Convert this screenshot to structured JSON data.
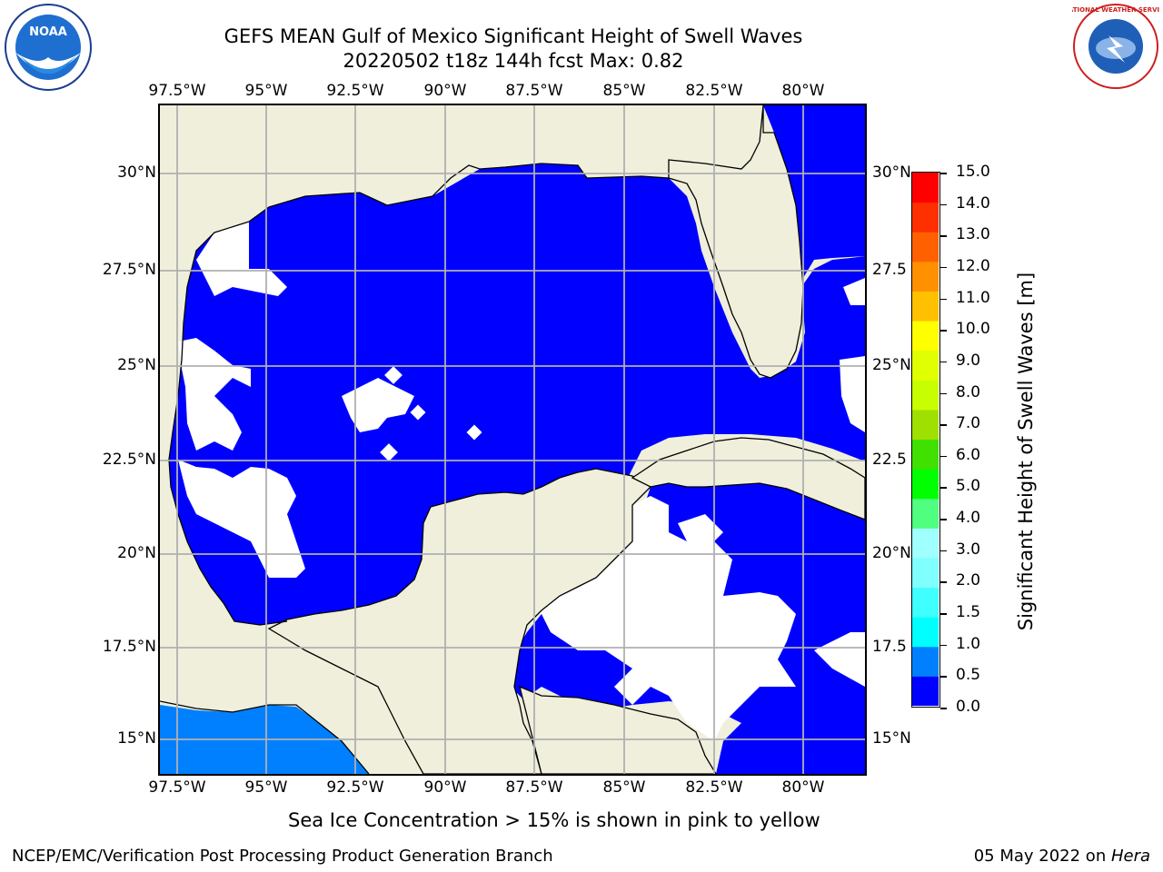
{
  "title_line1": "GEFS MEAN Gulf of Mexico Significant Height of Swell Waves",
  "title_line2": "20220502 t18z 144h fcst   Max: 0.82",
  "lon_ticks": [
    "97.5°W",
    "95°W",
    "92.5°W",
    "90°W",
    "87.5°W",
    "85°W",
    "82.5°W",
    "80°W"
  ],
  "lat_ticks_left": [
    "30°N",
    "27.5°N",
    "25°N",
    "22.5°N",
    "20°N",
    "17.5°N",
    "15°N"
  ],
  "lat_ticks_right": [
    "30°N",
    "27.5",
    "25°N",
    "22.5",
    "20°N",
    "17.5",
    "15°N"
  ],
  "colorbar": {
    "label": "Significant Height of Swell Waves [m]",
    "ticks": [
      "15.0",
      "14.0",
      "13.0",
      "12.0",
      "11.0",
      "10.0",
      "9.0",
      "8.0",
      "7.0",
      "6.0",
      "5.0",
      "4.0",
      "3.0",
      "2.0",
      "1.5",
      "1.0",
      "0.5",
      "0.0"
    ],
    "levels": [
      0,
      0.5,
      1,
      1.5,
      2,
      3,
      4,
      5,
      6,
      7,
      8,
      9,
      10,
      11,
      12,
      13,
      14,
      15
    ],
    "colors": [
      "#0000ff",
      "#0080ff",
      "#00ffff",
      "#40ffff",
      "#80ffff",
      "#a0ffff",
      "#50ff80",
      "#00ff00",
      "#40e000",
      "#a0e000",
      "#c8ff00",
      "#e0ff00",
      "#ffff00",
      "#ffc000",
      "#ff9000",
      "#ff6000",
      "#ff3000",
      "#ff0000"
    ]
  },
  "colors": {
    "land": "#efefdc",
    "ocean_low": "#0000ff",
    "ocean_half": "#0080ff",
    "no_data": "#ffffff",
    "grid": "#b0b0b0"
  },
  "footer_note": "Sea Ice Concentration > 15% is shown in pink to yellow",
  "footer_left": "NCEP/EMC/Verification Post Processing Product Generation Branch",
  "footer_date": "05 May 2022 on ",
  "footer_machine": "Hera",
  "logo_left_text": "NOAA",
  "logo_right_text": "NATIONAL WEATHER SERVICE"
}
